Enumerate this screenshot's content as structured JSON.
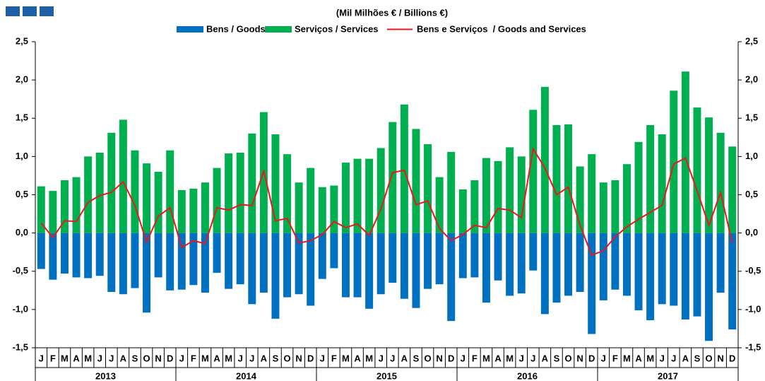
{
  "chart_data": {
    "type": "bar_line",
    "title": "(Mil Milhões € / Billions €)",
    "categories": [
      "J",
      "F",
      "M",
      "A",
      "M",
      "J",
      "J",
      "A",
      "S",
      "O",
      "N",
      "D",
      "J",
      "F",
      "M",
      "A",
      "M",
      "J",
      "J",
      "A",
      "S",
      "O",
      "N",
      "D",
      "J",
      "F",
      "M",
      "A",
      "M",
      "J",
      "J",
      "A",
      "S",
      "O",
      "N",
      "D",
      "J",
      "F",
      "M",
      "A",
      "M",
      "J",
      "J",
      "A",
      "S",
      "O",
      "N",
      "D",
      "J",
      "F",
      "M",
      "A",
      "M",
      "J",
      "J",
      "A",
      "S",
      "O",
      "N",
      "D"
    ],
    "years": [
      "2013",
      "2014",
      "2015",
      "2016",
      "2017"
    ],
    "series": [
      {
        "name": "Bens / Goods",
        "type": "bar",
        "color": "#0070c0",
        "values": [
          -0.47,
          -0.61,
          -0.53,
          -0.58,
          -0.59,
          -0.56,
          -0.77,
          -0.8,
          -0.72,
          -1.04,
          -0.58,
          -0.75,
          -0.74,
          -0.68,
          -0.78,
          -0.52,
          -0.73,
          -0.67,
          -0.93,
          -0.78,
          -1.12,
          -0.84,
          -0.8,
          -0.95,
          -0.6,
          -0.46,
          -0.84,
          -0.84,
          -0.99,
          -0.8,
          -0.65,
          -0.86,
          -0.98,
          -0.73,
          -0.67,
          -1.15,
          -0.59,
          -0.58,
          -0.91,
          -0.62,
          -0.82,
          -0.79,
          -0.49,
          -1.06,
          -0.91,
          -0.82,
          -0.77,
          -1.32,
          -0.88,
          -0.74,
          -0.82,
          -1.01,
          -1.14,
          -0.93,
          -0.95,
          -1.13,
          -1.09,
          -1.41,
          -0.78,
          -1.26
        ]
      },
      {
        "name": "Serviços / Services",
        "type": "bar",
        "color": "#00b050",
        "values": [
          0.61,
          0.55,
          0.69,
          0.73,
          1.0,
          1.05,
          1.31,
          1.48,
          1.08,
          0.91,
          0.8,
          1.08,
          0.56,
          0.58,
          0.66,
          0.85,
          1.04,
          1.05,
          1.3,
          1.58,
          1.29,
          1.03,
          0.66,
          0.85,
          0.6,
          0.62,
          0.92,
          0.97,
          0.97,
          1.11,
          1.45,
          1.68,
          1.36,
          1.16,
          0.73,
          1.06,
          0.57,
          0.69,
          0.98,
          0.94,
          1.12,
          1.0,
          1.61,
          1.91,
          1.41,
          1.42,
          0.87,
          1.03,
          0.66,
          0.69,
          0.9,
          1.19,
          1.41,
          1.29,
          1.86,
          2.11,
          1.64,
          1.51,
          1.31,
          1.13
        ]
      },
      {
        "name": "Bens e Serviços  / Goods and Services",
        "type": "line",
        "color": "#e8191c",
        "values": [
          0.13,
          -0.06,
          0.16,
          0.15,
          0.4,
          0.49,
          0.53,
          0.67,
          0.36,
          -0.12,
          0.22,
          0.33,
          -0.19,
          -0.1,
          -0.14,
          0.33,
          0.3,
          0.37,
          0.36,
          0.81,
          0.16,
          0.19,
          -0.13,
          -0.1,
          -0.02,
          0.15,
          0.07,
          0.12,
          -0.03,
          0.31,
          0.79,
          0.82,
          0.37,
          0.42,
          0.06,
          -0.1,
          -0.02,
          0.1,
          0.07,
          0.32,
          0.3,
          0.2,
          1.1,
          0.85,
          0.5,
          0.6,
          0.1,
          -0.29,
          -0.23,
          -0.05,
          0.08,
          0.18,
          0.27,
          0.36,
          0.9,
          0.98,
          0.55,
          0.1,
          0.53,
          -0.13
        ]
      }
    ],
    "ylim": [
      -1.5,
      2.5
    ],
    "yticks": [
      {
        "value": -1.5,
        "label": "-1,5"
      },
      {
        "value": -1.0,
        "label": "-1,0"
      },
      {
        "value": -0.5,
        "label": "-0,5"
      },
      {
        "value": 0,
        "label": "0,0"
      },
      {
        "value": 0.5,
        "label": "0,5"
      },
      {
        "value": 1.0,
        "label": "1,0"
      },
      {
        "value": 1.5,
        "label": "1,5"
      },
      {
        "value": 2.0,
        "label": "2,0"
      },
      {
        "value": 2.5,
        "label": "2,5"
      }
    ]
  }
}
